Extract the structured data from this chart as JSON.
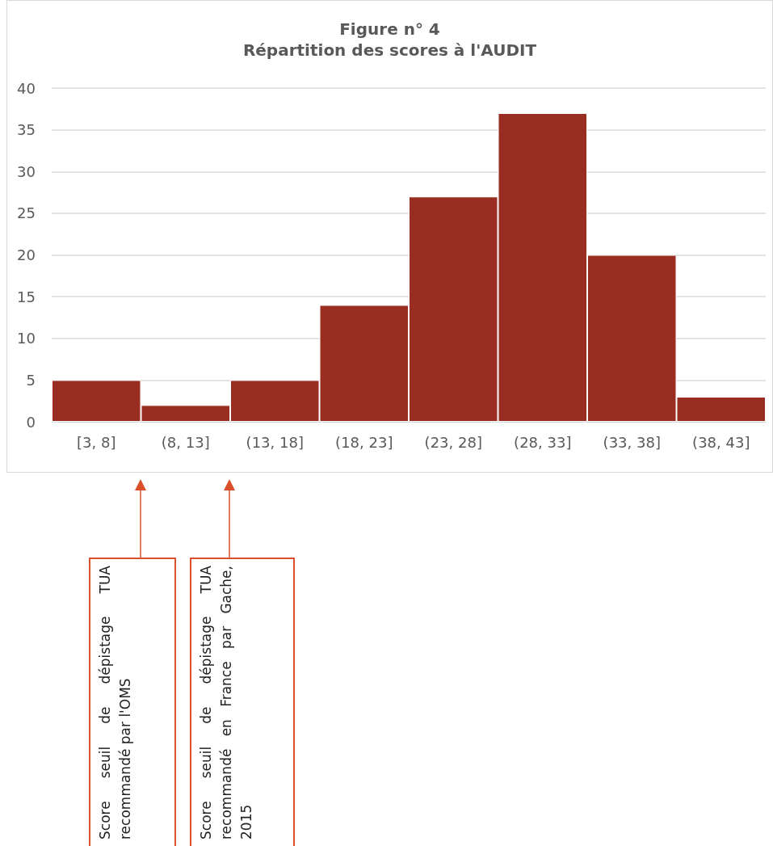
{
  "chart_data": {
    "type": "bar",
    "title": "Figure n° 4",
    "subtitle": "Répartition des scores à l'AUDIT",
    "categories": [
      "[3, 8]",
      "(8, 13]",
      "(13, 18]",
      "(18, 23]",
      "(23, 28]",
      "(28, 33]",
      "(33, 38]",
      "(38, 43]"
    ],
    "values": [
      5,
      2,
      5,
      14,
      27,
      37,
      20,
      3
    ],
    "color": "#992d22",
    "ylim": [
      0,
      40
    ],
    "yticks": [
      0,
      5,
      10,
      15,
      20,
      25,
      30,
      35,
      40
    ],
    "grid": "y",
    "annotations": [
      "Score seuil de dépistage TUA recommandé par l'OMS",
      "Score seuil de dépistage TUA recommandé en France par Gache, 2015"
    ]
  }
}
